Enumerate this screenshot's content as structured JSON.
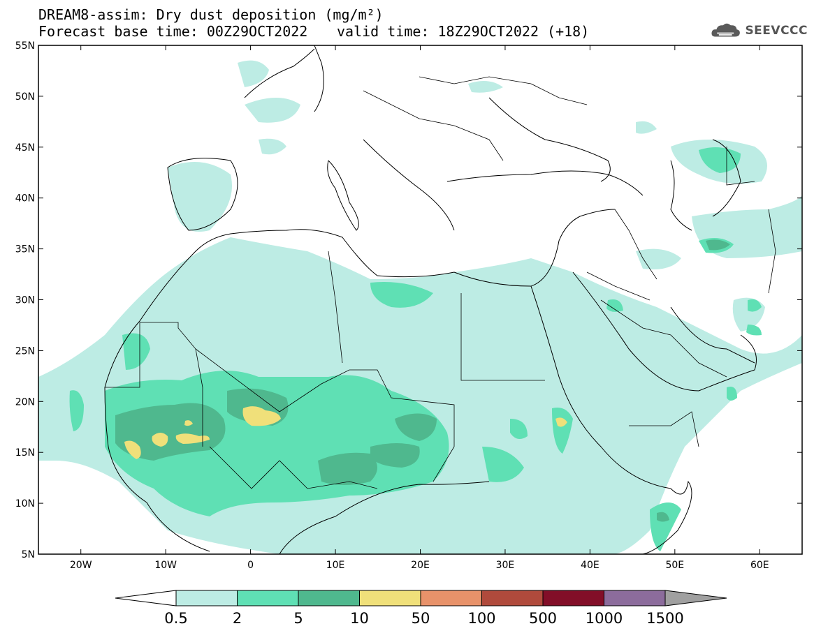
{
  "header": {
    "title": "DREAM8-assim: Dry dust deposition (mg/m²)",
    "base_time": "Forecast base time: 00Z29OCT2022",
    "valid_time": "valid time: 18Z29OCT2022 (+18)"
  },
  "logo": {
    "text": "SEEVCCC",
    "icon": "cloud-icon"
  },
  "map": {
    "lat_labels": [
      "55N",
      "50N",
      "45N",
      "40N",
      "35N",
      "30N",
      "25N",
      "20N",
      "15N",
      "10N",
      "5N"
    ],
    "lon_labels": [
      "20W",
      "10W",
      "0",
      "10E",
      "20E",
      "30E",
      "40E",
      "50E",
      "60E"
    ],
    "lon_range": [
      -25,
      65
    ],
    "lat_range": [
      5,
      55
    ]
  },
  "colorbar": {
    "labels": [
      "0.5",
      "2",
      "5",
      "10",
      "50",
      "100",
      "500",
      "1000",
      "1500"
    ],
    "colors": [
      "#bdece4",
      "#5fe0b4",
      "#4fb88e",
      "#f0e07a",
      "#e8926a",
      "#b04a3c",
      "#820e28",
      "#8c6c9c"
    ],
    "under_color": "#ffffff",
    "over_color": "#a0a0a0"
  }
}
